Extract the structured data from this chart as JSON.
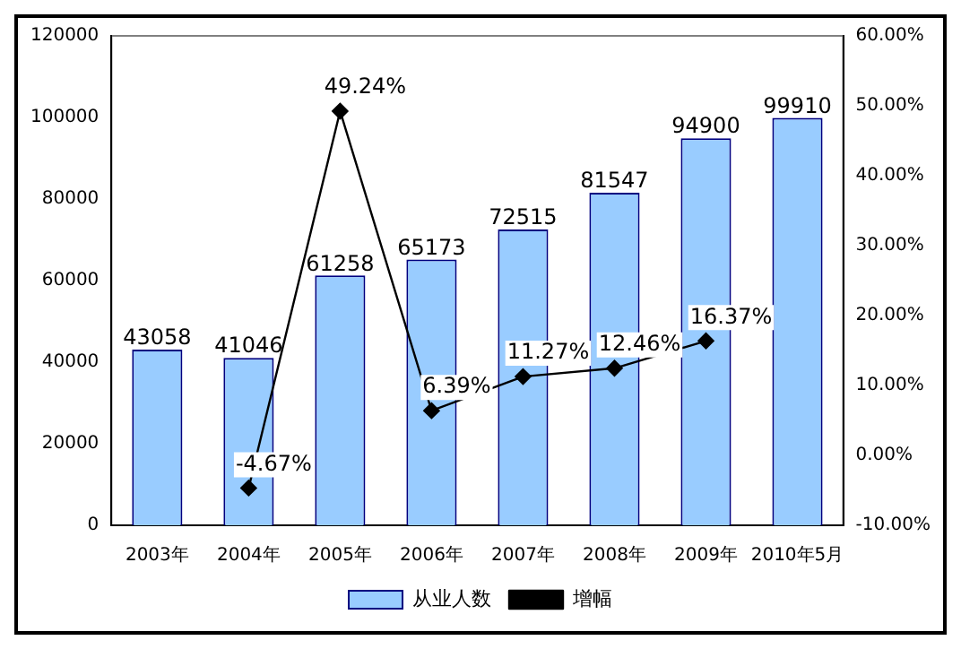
{
  "chart_data": {
    "type": "bar",
    "categories": [
      "2003年",
      "2004年",
      "2005年",
      "2006年",
      "2007年",
      "2008年",
      "2009年",
      "2010年5月"
    ],
    "series": [
      {
        "name": "从业人数",
        "color": "#99ccff",
        "values": [
          43058,
          41046,
          61258,
          65173,
          72515,
          81547,
          94900,
          99910
        ],
        "value_labels": [
          "43058",
          "41046",
          "61258",
          "65173",
          "72515",
          "81547",
          "94900",
          "99910"
        ]
      },
      {
        "name": "增幅",
        "type": "line",
        "axis": "y2",
        "color": "#000000",
        "marker": "diamond",
        "values": [
          null,
          -4.67,
          49.24,
          6.39,
          11.27,
          12.46,
          16.37,
          null
        ],
        "value_labels": [
          null,
          "-4.67%",
          "49.24%",
          "6.39%",
          "11.27%",
          "12.46%",
          "16.37%",
          null
        ]
      }
    ],
    "ylim": [
      0,
      120000
    ],
    "yticks": [
      0,
      20000,
      40000,
      60000,
      80000,
      100000,
      120000
    ],
    "y2lim": [
      -10,
      60
    ],
    "y2ticks": [
      {
        "value": -10,
        "label": "-10.00%"
      },
      {
        "value": 0,
        "label": "0.00%"
      },
      {
        "value": 10,
        "label": "10.00%"
      },
      {
        "value": 20,
        "label": "20.00%"
      },
      {
        "value": 30,
        "label": "30.00%"
      },
      {
        "value": 40,
        "label": "40.00%"
      },
      {
        "value": 50,
        "label": "50.00%"
      },
      {
        "value": 60,
        "label": "60.00%"
      }
    ],
    "legend": "bottom"
  }
}
